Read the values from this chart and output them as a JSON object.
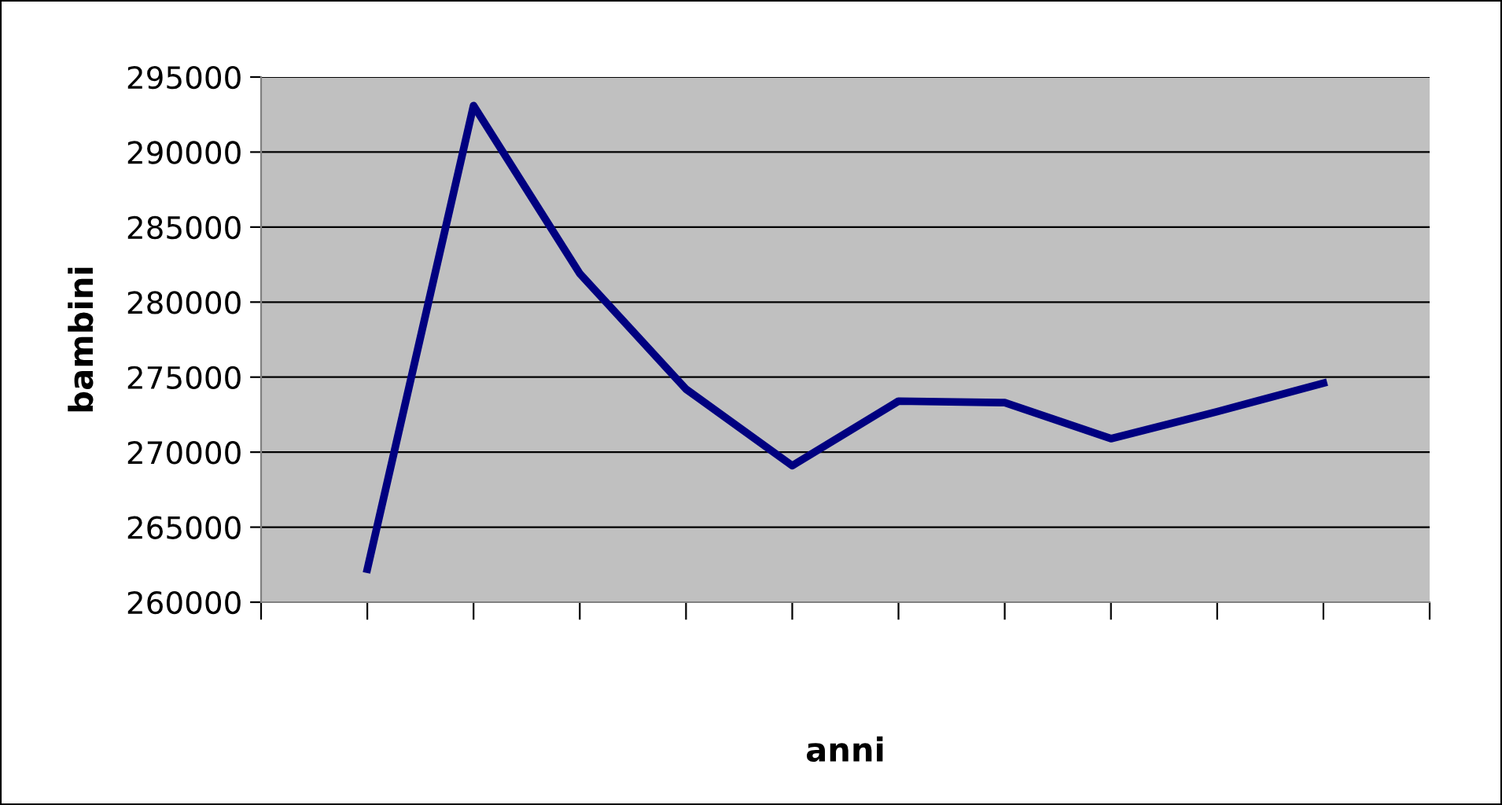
{
  "chart_data": {
    "type": "line",
    "xlabel": "anni",
    "ylabel": "bambini",
    "categories": [
      null,
      null,
      null,
      null,
      null,
      null,
      null,
      null,
      null,
      null,
      null,
      null
    ],
    "series": [
      {
        "color": "#000080",
        "values": [
          null,
          262200,
          293100,
          281900,
          274200,
          269100,
          273400,
          273300,
          270900,
          272700,
          274600,
          null
        ]
      }
    ],
    "ylim": [
      260000,
      295000
    ],
    "yticks": [
      260000,
      265000,
      270000,
      275000,
      280000,
      285000,
      290000,
      295000
    ],
    "grid": "y",
    "legend": false,
    "marker": "none",
    "line_style": "solid"
  }
}
